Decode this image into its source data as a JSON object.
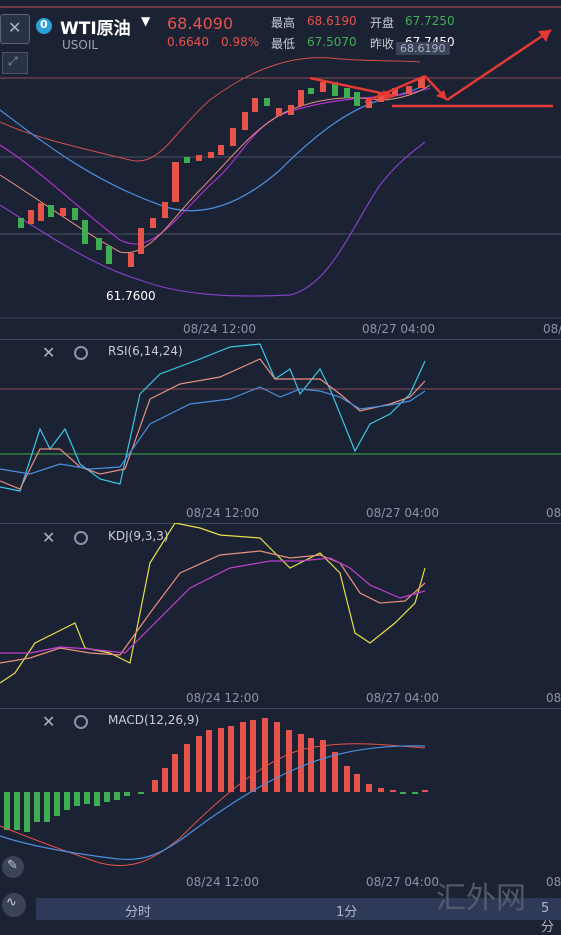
{
  "header": {
    "symbol": "WTI原油",
    "code": "USOIL",
    "price": "68.4090",
    "change": "0.6640",
    "change_pct": "0.98%",
    "high_label": "最高",
    "high": "68.6190",
    "low_label": "最低",
    "low": "67.5070",
    "open_label": "开盘",
    "open": "67.7250",
    "prev_label": "昨收",
    "prev": "67.7450",
    "right_price": "68.6190"
  },
  "main": {
    "min_label": "61.7600",
    "ticks": [
      "08/24 12:00",
      "08/27 04:00",
      "08/"
    ]
  },
  "rsi": {
    "title": "RSI(6,14,24)",
    "ticks": [
      "08/24 12:00",
      "08/27 04:00",
      "08/"
    ]
  },
  "kdj": {
    "title": "KDJ(9,3,3)",
    "ticks": [
      "08/24 12:00",
      "08/27 04:00",
      "08/"
    ]
  },
  "macd": {
    "title": "MACD(12,26,9)",
    "ticks": [
      "08/24 12:00",
      "08/27 04:00",
      "08/"
    ]
  },
  "bottom": {
    "tabs": [
      "分时",
      "1分",
      "5分"
    ]
  },
  "watermark": "汇外网",
  "colors": {
    "up": "#e5534b",
    "down": "#3fae52",
    "bg": "#1b2233",
    "accent": "#e53935"
  }
}
